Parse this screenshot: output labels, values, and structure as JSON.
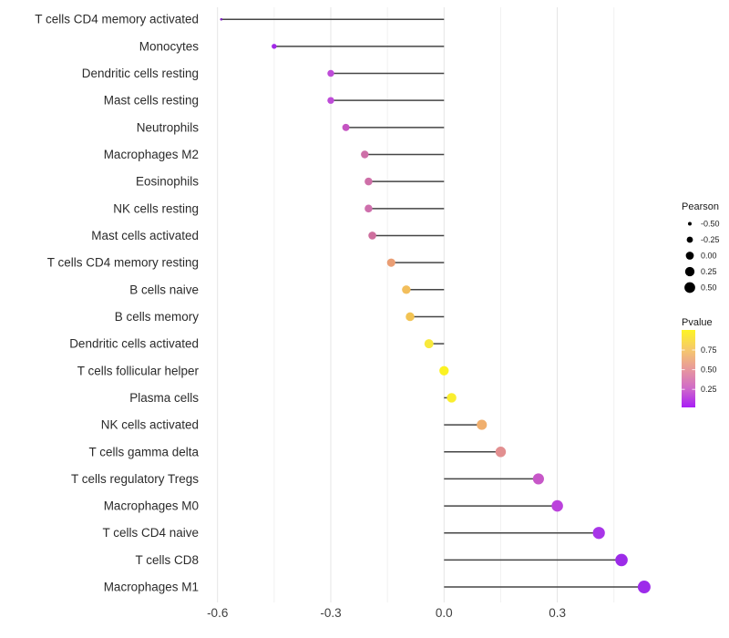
{
  "chart_data": {
    "type": "lollipop",
    "orientation": "horizontal",
    "title": "",
    "xlabel": "",
    "ylabel": "",
    "x_tick_values": [
      -0.6,
      -0.3,
      0.0,
      0.3
    ],
    "x_tick_labels": [
      "-0.6",
      "-0.3",
      "0.0",
      "0.3"
    ],
    "xlim": [
      -0.655,
      0.565
    ],
    "grid": {
      "major": [
        -0.6,
        -0.3,
        0.0,
        0.3
      ],
      "minor": [
        -0.45,
        -0.15,
        0.15,
        0.45
      ],
      "major_color": "#e4e4e4",
      "minor_color": "#f1f1f1"
    },
    "encoding": {
      "size": "Pearson",
      "color": "Pvalue"
    },
    "stem_color": "#454545",
    "points": [
      {
        "label": "T cells CD4 memory activated",
        "pearson": -0.59,
        "pvalue": 0.01,
        "color": "#7E22BD"
      },
      {
        "label": "Monocytes",
        "pearson": -0.45,
        "pvalue": 0.04,
        "color": "#A228E8"
      },
      {
        "label": "Dendritic cells resting",
        "pearson": -0.3,
        "pvalue": 0.15,
        "color": "#BE4CD8"
      },
      {
        "label": "Mast cells resting",
        "pearson": -0.3,
        "pvalue": 0.15,
        "color": "#BE4CD8"
      },
      {
        "label": "Neutrophils",
        "pearson": -0.26,
        "pvalue": 0.2,
        "color": "#C554C2"
      },
      {
        "label": "Macrophages M2",
        "pearson": -0.21,
        "pvalue": 0.3,
        "color": "#CE6FA8"
      },
      {
        "label": "Eosinophils",
        "pearson": -0.2,
        "pvalue": 0.3,
        "color": "#CE6FA8"
      },
      {
        "label": "NK cells resting",
        "pearson": -0.2,
        "pvalue": 0.31,
        "color": "#CE6FAC"
      },
      {
        "label": "Mast cells activated",
        "pearson": -0.19,
        "pvalue": 0.33,
        "color": "#CE6F9E"
      },
      {
        "label": "T cells CD4 memory resting",
        "pearson": -0.14,
        "pvalue": 0.52,
        "color": "#EA9E74"
      },
      {
        "label": "B cells naive",
        "pearson": -0.1,
        "pvalue": 0.64,
        "color": "#F2BE5C"
      },
      {
        "label": "B cells memory",
        "pearson": -0.09,
        "pvalue": 0.67,
        "color": "#F2C353"
      },
      {
        "label": "Dendritic cells activated",
        "pearson": -0.04,
        "pvalue": 0.88,
        "color": "#F8E93C"
      },
      {
        "label": "T cells follicular helper",
        "pearson": 0.0,
        "pvalue": 0.96,
        "color": "#FBF222"
      },
      {
        "label": "Plasma cells",
        "pearson": 0.02,
        "pvalue": 0.92,
        "color": "#FAEE2E"
      },
      {
        "label": "NK cells activated",
        "pearson": 0.1,
        "pvalue": 0.58,
        "color": "#F0AF6E"
      },
      {
        "label": "T cells gamma delta",
        "pearson": 0.15,
        "pvalue": 0.47,
        "color": "#E28F90"
      },
      {
        "label": "T cells regulatory  Tregs",
        "pearson": 0.25,
        "pvalue": 0.22,
        "color": "#C757C8"
      },
      {
        "label": "Macrophages M0",
        "pearson": 0.3,
        "pvalue": 0.13,
        "color": "#BB42DC"
      },
      {
        "label": "T cells CD4 naive",
        "pearson": 0.41,
        "pvalue": 0.06,
        "color": "#A835E8"
      },
      {
        "label": "T cells CD8",
        "pearson": 0.47,
        "pvalue": 0.04,
        "color": "#9C2BE8"
      },
      {
        "label": "Macrophages M1",
        "pearson": 0.53,
        "pvalue": 0.03,
        "color": "#9D2BEA"
      }
    ],
    "legend_size": {
      "title": "Pearson",
      "labels": [
        "-0.50",
        "-0.25",
        "0.00",
        "0.25",
        "0.50"
      ],
      "values": [
        -0.5,
        -0.25,
        0.0,
        0.25,
        0.5
      ],
      "dot_color": "#000000"
    },
    "legend_color": {
      "title": "Pvalue",
      "tick_labels": [
        "0.75",
        "0.50",
        "0.25"
      ],
      "gradient_stops": [
        {
          "offset": "0%",
          "color": "#FDF424"
        },
        {
          "offset": "25%",
          "color": "#F6C96B"
        },
        {
          "offset": "50%",
          "color": "#E8999B"
        },
        {
          "offset": "75%",
          "color": "#D06BC8"
        },
        {
          "offset": "100%",
          "color": "#A81EF5"
        }
      ]
    }
  }
}
